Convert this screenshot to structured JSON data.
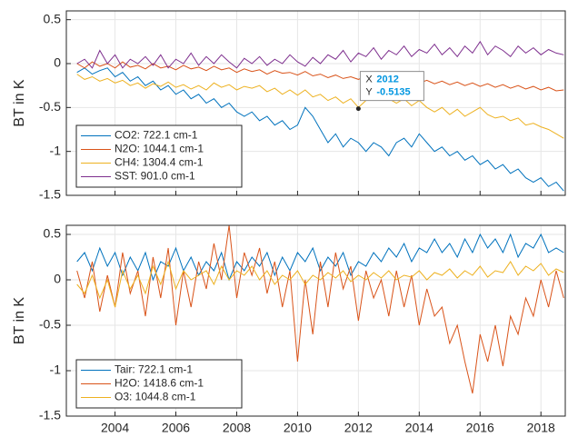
{
  "chart_data": [
    {
      "type": "line",
      "ylabel": "BT in K",
      "xlim": [
        2002.4,
        2018.8
      ],
      "ylim": [
        -1.5,
        0.6
      ],
      "yticks": [
        -1.5,
        -1,
        -0.5,
        0,
        0.5
      ],
      "grid": true,
      "legend": "lower left",
      "x": [
        2002.75,
        2003,
        2003.25,
        2003.5,
        2003.75,
        2004,
        2004.25,
        2004.5,
        2004.75,
        2005,
        2005.25,
        2005.5,
        2005.75,
        2006,
        2006.25,
        2006.5,
        2006.75,
        2007,
        2007.25,
        2007.5,
        2007.75,
        2008,
        2008.25,
        2008.5,
        2008.75,
        2009,
        2009.25,
        2009.5,
        2009.75,
        2010,
        2010.25,
        2010.5,
        2010.75,
        2011,
        2011.25,
        2011.5,
        2011.75,
        2012,
        2012.25,
        2012.5,
        2012.75,
        2013,
        2013.25,
        2013.5,
        2013.75,
        2014,
        2014.25,
        2014.5,
        2014.75,
        2015,
        2015.25,
        2015.5,
        2015.75,
        2016,
        2016.25,
        2016.5,
        2016.75,
        2017,
        2017.25,
        2017.5,
        2017.75,
        2018,
        2018.25,
        2018.5,
        2018.75
      ],
      "series": [
        {
          "name": "CO2: 722.1 cm-1",
          "color": "#0072BD",
          "values": [
            -0.1,
            -0.05,
            -0.12,
            -0.08,
            -0.05,
            -0.15,
            -0.1,
            -0.2,
            -0.15,
            -0.25,
            -0.2,
            -0.3,
            -0.25,
            -0.35,
            -0.3,
            -0.4,
            -0.35,
            -0.45,
            -0.4,
            -0.5,
            -0.45,
            -0.55,
            -0.6,
            -0.55,
            -0.65,
            -0.6,
            -0.7,
            -0.65,
            -0.75,
            -0.7,
            -0.5,
            -0.6,
            -0.75,
            -0.9,
            -0.8,
            -0.95,
            -0.85,
            -0.9,
            -1.0,
            -0.9,
            -0.95,
            -1.05,
            -0.9,
            -0.85,
            -0.95,
            -0.8,
            -0.9,
            -1.0,
            -0.95,
            -1.05,
            -1.0,
            -1.1,
            -1.05,
            -1.15,
            -1.1,
            -1.2,
            -1.15,
            -1.25,
            -1.2,
            -1.3,
            -1.35,
            -1.3,
            -1.4,
            -1.35,
            -1.45
          ]
        },
        {
          "name": "N2O: 1044.1 cm-1",
          "color": "#D95319",
          "values": [
            0.0,
            -0.05,
            0.02,
            -0.03,
            0.0,
            -0.05,
            0.02,
            -0.04,
            -0.02,
            -0.06,
            0.0,
            -0.05,
            -0.03,
            -0.07,
            -0.02,
            -0.06,
            -0.04,
            -0.08,
            -0.03,
            -0.07,
            -0.05,
            -0.1,
            -0.06,
            -0.09,
            -0.07,
            -0.12,
            -0.08,
            -0.11,
            -0.1,
            -0.13,
            -0.09,
            -0.14,
            -0.12,
            -0.16,
            -0.13,
            -0.17,
            -0.15,
            -0.18,
            -0.14,
            -0.19,
            -0.17,
            -0.2,
            -0.16,
            -0.21,
            -0.18,
            -0.22,
            -0.19,
            -0.23,
            -0.2,
            -0.24,
            -0.21,
            -0.25,
            -0.22,
            -0.26,
            -0.23,
            -0.27,
            -0.24,
            -0.28,
            -0.25,
            -0.29,
            -0.26,
            -0.3,
            -0.27,
            -0.31,
            -0.3
          ]
        },
        {
          "name": "CH4: 1304.4 cm-1",
          "color": "#EDB120",
          "values": [
            -0.12,
            -0.18,
            -0.15,
            -0.2,
            -0.17,
            -0.22,
            -0.19,
            -0.25,
            -0.22,
            -0.28,
            -0.23,
            -0.26,
            -0.21,
            -0.27,
            -0.24,
            -0.29,
            -0.25,
            -0.3,
            -0.22,
            -0.27,
            -0.24,
            -0.3,
            -0.26,
            -0.28,
            -0.25,
            -0.32,
            -0.28,
            -0.35,
            -0.3,
            -0.36,
            -0.3,
            -0.38,
            -0.35,
            -0.42,
            -0.38,
            -0.45,
            -0.4,
            -0.5,
            -0.42,
            -0.38,
            -0.35,
            -0.4,
            -0.45,
            -0.4,
            -0.48,
            -0.42,
            -0.5,
            -0.55,
            -0.5,
            -0.58,
            -0.52,
            -0.6,
            -0.55,
            -0.5,
            -0.58,
            -0.62,
            -0.6,
            -0.65,
            -0.62,
            -0.7,
            -0.68,
            -0.72,
            -0.75,
            -0.8,
            -0.85
          ]
        },
        {
          "name": "SST: 901.0 cm-1",
          "color": "#7E2F8E",
          "values": [
            0.0,
            0.05,
            -0.05,
            0.15,
            0.0,
            0.1,
            -0.05,
            0.05,
            0.0,
            0.08,
            -0.02,
            0.1,
            -0.05,
            0.05,
            0.0,
            0.12,
            -0.02,
            0.08,
            0.0,
            0.1,
            0.02,
            -0.05,
            0.06,
            0.0,
            0.08,
            -0.02,
            0.05,
            0.0,
            0.1,
            0.02,
            -0.03,
            0.07,
            0.0,
            0.1,
            0.05,
            0.15,
            0.02,
            0.12,
            0.08,
            0.18,
            0.05,
            0.15,
            0.1,
            0.2,
            0.08,
            0.16,
            0.12,
            0.22,
            0.1,
            0.18,
            0.08,
            0.2,
            0.12,
            0.25,
            0.1,
            0.2,
            0.15,
            0.08,
            0.2,
            0.12,
            0.18,
            0.1,
            0.16,
            0.12,
            0.1
          ]
        }
      ],
      "datatip": {
        "x_label": "X",
        "x": 2012,
        "y_label": "Y",
        "y": -0.5135
      }
    },
    {
      "type": "line",
      "ylabel": "BT in K",
      "xlim": [
        2002.4,
        2018.8
      ],
      "ylim": [
        -1.5,
        0.6
      ],
      "yticks": [
        -1.5,
        -1,
        -0.5,
        0,
        0.5
      ],
      "xticks": [
        2004,
        2006,
        2008,
        2010,
        2012,
        2014,
        2016,
        2018
      ],
      "grid": true,
      "legend": "lower left",
      "x": [
        2002.75,
        2003,
        2003.25,
        2003.5,
        2003.75,
        2004,
        2004.25,
        2004.5,
        2004.75,
        2005,
        2005.25,
        2005.5,
        2005.75,
        2006,
        2006.25,
        2006.5,
        2006.75,
        2007,
        2007.25,
        2007.5,
        2007.75,
        2008,
        2008.25,
        2008.5,
        2008.75,
        2009,
        2009.25,
        2009.5,
        2009.75,
        2010,
        2010.25,
        2010.5,
        2010.75,
        2011,
        2011.25,
        2011.5,
        2011.75,
        2012,
        2012.25,
        2012.5,
        2012.75,
        2013,
        2013.25,
        2013.5,
        2013.75,
        2014,
        2014.25,
        2014.5,
        2014.75,
        2015,
        2015.25,
        2015.5,
        2015.75,
        2016,
        2016.25,
        2016.5,
        2016.75,
        2017,
        2017.25,
        2017.5,
        2017.75,
        2018,
        2018.25,
        2018.5,
        2018.75
      ],
      "series": [
        {
          "name": "Tair: 722.1 cm-1",
          "color": "#0072BD",
          "values": [
            0.2,
            0.3,
            0.1,
            0.35,
            0.15,
            0.3,
            0.05,
            0.25,
            0.1,
            0.3,
            0.0,
            0.2,
            0.15,
            0.35,
            0.1,
            0.25,
            0.05,
            0.2,
            0.1,
            0.3,
            0.0,
            0.2,
            0.1,
            0.25,
            0.15,
            0.3,
            0.05,
            0.25,
            0.1,
            0.3,
            0.2,
            0.35,
            0.1,
            0.25,
            0.15,
            0.3,
            0.05,
            0.2,
            0.15,
            0.3,
            0.2,
            0.35,
            0.25,
            0.4,
            0.2,
            0.35,
            0.3,
            0.45,
            0.3,
            0.4,
            0.25,
            0.45,
            0.3,
            0.5,
            0.35,
            0.45,
            0.3,
            0.5,
            0.25,
            0.4,
            0.35,
            0.5,
            0.3,
            0.35,
            0.3
          ]
        },
        {
          "name": "H2O: 1418.6 cm-1",
          "color": "#D95319",
          "values": [
            0.1,
            -0.2,
            0.2,
            -0.35,
            0.05,
            -0.3,
            0.3,
            -0.15,
            0.1,
            -0.4,
            0.25,
            -0.2,
            0.35,
            -0.5,
            0.1,
            -0.3,
            0.2,
            -0.1,
            0.4,
            0.0,
            0.6,
            -0.2,
            0.3,
            0.05,
            0.35,
            -0.15,
            0.2,
            -0.3,
            0.1,
            -0.9,
            0.0,
            -0.6,
            0.2,
            -0.3,
            0.3,
            -0.1,
            0.15,
            -0.45,
            0.1,
            -0.2,
            0.0,
            -0.4,
            0.1,
            -0.3,
            0.05,
            -0.5,
            -0.1,
            -0.4,
            -0.3,
            -0.7,
            -0.5,
            -0.9,
            -1.25,
            -0.6,
            -0.9,
            -0.5,
            -0.95,
            -0.4,
            -0.6,
            -0.2,
            -0.4,
            0.0,
            -0.3,
            0.1,
            -0.2
          ]
        },
        {
          "name": "O3: 1044.8 cm-1",
          "color": "#EDB120",
          "values": [
            -0.05,
            -0.15,
            0.05,
            -0.2,
            0.0,
            -0.3,
            0.1,
            -0.1,
            0.05,
            -0.15,
            0.15,
            -0.05,
            0.2,
            -0.1,
            0.1,
            0.0,
            0.05,
            0.1,
            -0.05,
            0.15,
            0.0,
            0.1,
            0.05,
            0.15,
            0.0,
            0.1,
            -0.05,
            0.05,
            0.0,
            0.1,
            -0.05,
            0.05,
            0.0,
            0.08,
            0.02,
            0.1,
            -0.02,
            0.05,
            0.0,
            0.08,
            0.02,
            0.1,
            0.0,
            0.05,
            0.03,
            0.1,
            0.0,
            0.08,
            0.05,
            0.12,
            0.02,
            0.1,
            0.05,
            0.15,
            0.03,
            0.1,
            0.08,
            0.2,
            0.05,
            0.15,
            0.1,
            0.18,
            0.05,
            0.12,
            0.08
          ]
        }
      ]
    }
  ]
}
